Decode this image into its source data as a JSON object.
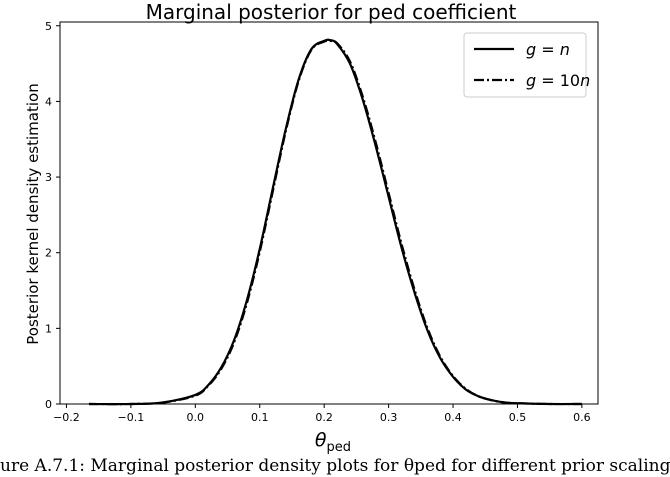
{
  "chart_data": {
    "type": "line",
    "title": "Marginal posterior for ped coefficient",
    "xlabel": "θ",
    "xlabel_subscript": "ped",
    "ylabel": "Posterior kernel density estimation",
    "xlim": [
      -0.21,
      0.625
    ],
    "ylim": [
      0,
      5.05
    ],
    "xticks": [
      -0.2,
      -0.1,
      0.0,
      0.1,
      0.2,
      0.3,
      0.4,
      0.5,
      0.6
    ],
    "xtick_labels": [
      "−0.2",
      "−0.1",
      "0.0",
      "0.1",
      "0.2",
      "0.3",
      "0.4",
      "0.5",
      "0.6"
    ],
    "yticks": [
      0,
      1,
      2,
      3,
      4,
      5
    ],
    "ytick_labels": [
      "0",
      "1",
      "2",
      "3",
      "4",
      "5"
    ],
    "grid": false,
    "legend_position": "top-right",
    "series": [
      {
        "name": "g = n",
        "legend_parts": [
          "g",
          " = ",
          "n"
        ],
        "style": "solid",
        "color": "#000000",
        "x": [
          -0.165,
          -0.1,
          -0.05,
          0.0,
          0.02,
          0.04,
          0.06,
          0.08,
          0.1,
          0.12,
          0.14,
          0.16,
          0.18,
          0.2,
          0.21,
          0.22,
          0.24,
          0.26,
          0.28,
          0.3,
          0.32,
          0.34,
          0.36,
          0.38,
          0.4,
          0.42,
          0.44,
          0.46,
          0.48,
          0.5,
          0.55,
          0.6
        ],
        "y": [
          0.0,
          0.0,
          0.02,
          0.12,
          0.25,
          0.48,
          0.84,
          1.37,
          2.05,
          2.84,
          3.62,
          4.28,
          4.69,
          4.8,
          4.81,
          4.76,
          4.5,
          4.02,
          3.41,
          2.74,
          2.07,
          1.48,
          0.98,
          0.61,
          0.36,
          0.19,
          0.1,
          0.05,
          0.02,
          0.01,
          0.0,
          0.0
        ]
      },
      {
        "name": "g = 10n",
        "legend_parts": [
          "g",
          " = 10",
          "n"
        ],
        "style": "dashdot",
        "color": "#000000",
        "x": [
          -0.165,
          -0.1,
          -0.05,
          0.0,
          0.02,
          0.04,
          0.06,
          0.08,
          0.1,
          0.12,
          0.14,
          0.16,
          0.18,
          0.2,
          0.21,
          0.22,
          0.24,
          0.26,
          0.28,
          0.3,
          0.32,
          0.34,
          0.36,
          0.38,
          0.4,
          0.42,
          0.44,
          0.46,
          0.48,
          0.5,
          0.55,
          0.6
        ],
        "y": [
          0.0,
          0.0,
          0.02,
          0.11,
          0.24,
          0.46,
          0.81,
          1.33,
          2.01,
          2.8,
          3.59,
          4.26,
          4.68,
          4.79,
          4.8,
          4.77,
          4.53,
          4.06,
          3.46,
          2.79,
          2.12,
          1.52,
          1.01,
          0.63,
          0.37,
          0.2,
          0.1,
          0.05,
          0.02,
          0.01,
          0.0,
          0.0
        ]
      }
    ]
  },
  "caption": "ure A.7.1: Marginal posterior density plots for θped for different prior scaling"
}
